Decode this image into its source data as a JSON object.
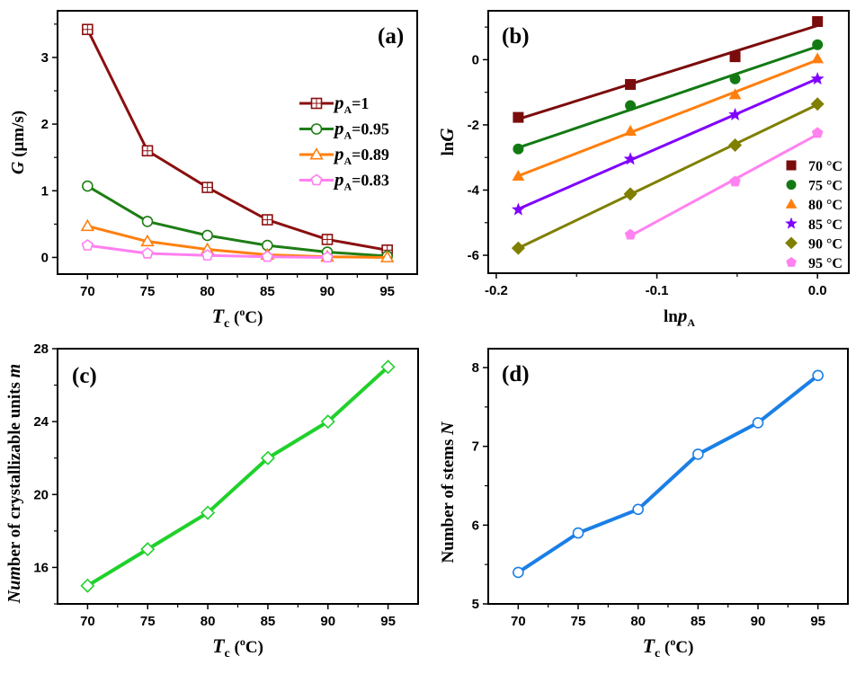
{
  "chart_data": [
    {
      "panel": "(a)",
      "type": "line",
      "title": "",
      "xlabel": "Tc (oC)",
      "xlabel_main": "T",
      "xlabel_sub": "c",
      "xlabel_unit_open": " (",
      "xlabel_unit_sup": "o",
      "xlabel_unit_close": "C)",
      "ylabel": "G (μm/s)",
      "ylabel_main": "G",
      "ylabel_unit": " (μm/s)",
      "x": [
        70,
        75,
        80,
        85,
        90,
        95
      ],
      "xlim": [
        67.5,
        97.5
      ],
      "ylim": [
        -0.25,
        3.7
      ],
      "xticks": [
        70,
        75,
        80,
        85,
        90,
        95
      ],
      "yticks": [
        0,
        1,
        2,
        3
      ],
      "legend_position": "center-right",
      "series": [
        {
          "name": "pA=1",
          "label_main": "p",
          "label_sub": "A",
          "label_rest": "=1",
          "color": "#8b0f0f",
          "marker": "square-open",
          "values": [
            3.42,
            1.6,
            1.05,
            0.565,
            0.27,
            0.11
          ]
        },
        {
          "name": "pA=0.95",
          "label_main": "p",
          "label_sub": "A",
          "label_rest": "=0.95",
          "color": "#1e7d14",
          "marker": "circle-open",
          "values": [
            1.07,
            0.54,
            0.33,
            0.18,
            0.08,
            0.02
          ]
        },
        {
          "name": "pA=0.89",
          "label_main": "p",
          "label_sub": "A",
          "label_rest": "=0.89",
          "color": "#ff7f0e",
          "marker": "triangle-open",
          "values": [
            0.47,
            0.24,
            0.12,
            0.04,
            0.01,
            0.0
          ]
        },
        {
          "name": "pA=0.83",
          "label_main": "p",
          "label_sub": "A",
          "label_rest": "=0.83",
          "color": "#ff7ff0",
          "marker": "pentagon-open",
          "values": [
            0.18,
            0.06,
            0.03,
            0.01,
            0.0,
            null
          ]
        }
      ]
    },
    {
      "panel": "(b)",
      "type": "scatter",
      "title": "",
      "xlabel": "lnpA",
      "xlabel_main": "ln",
      "xlabel_italic": "p",
      "xlabel_sub": "A",
      "ylabel": "lnG",
      "ylabel_main": "ln",
      "ylabel_italic": "G",
      "x": [
        -0.1863,
        -0.1165,
        -0.0513,
        0.0
      ],
      "xlim": [
        -0.205,
        0.0195
      ],
      "ylim": [
        -6.55,
        1.5
      ],
      "xticks": [
        -0.2,
        -0.1,
        0.0
      ],
      "xtick_labels": [
        "-0.2",
        "-0.1",
        "0.0"
      ],
      "yticks": [
        -6,
        -4,
        -2,
        0
      ],
      "legend_position": "bottom-right",
      "fit_lines": true,
      "series": [
        {
          "name": "70 °C",
          "color": "#7b0c0c",
          "marker": "square",
          "values": [
            -1.77,
            -0.76,
            0.09,
            1.17
          ]
        },
        {
          "name": "75 °C",
          "color": "#137a13",
          "marker": "circle",
          "values": [
            -2.74,
            -1.41,
            -0.59,
            0.46
          ]
        },
        {
          "name": "80 °C",
          "color": "#ff7f0e",
          "marker": "triangle",
          "values": [
            -3.57,
            -2.19,
            -1.07,
            0.03
          ]
        },
        {
          "name": "85 °C",
          "color": "#7f00ff",
          "marker": "star",
          "values": [
            -4.6,
            -3.05,
            -1.69,
            -0.59
          ]
        },
        {
          "name": "90 °C",
          "color": "#7f7f00",
          "marker": "diamond",
          "values": [
            -5.78,
            -4.12,
            -2.62,
            -1.36
          ]
        },
        {
          "name": "95 °C",
          "color": "#ff82f0",
          "marker": "pentagon",
          "values": [
            null,
            -5.37,
            -3.74,
            -2.25
          ]
        }
      ]
    },
    {
      "panel": "(c)",
      "type": "line",
      "title": "",
      "xlabel": "Tc (oC)",
      "xlabel_main": "T",
      "xlabel_sub": "c",
      "xlabel_unit_open": " (",
      "xlabel_unit_sup": "o",
      "xlabel_unit_close": "C)",
      "ylabel": "Number of crystallizable units m",
      "ylabel_italic_pre": "Num",
      "ylabel_main": "ber of crystallizable units ",
      "ylabel_italic": "m",
      "x": [
        70,
        75,
        80,
        85,
        90,
        95
      ],
      "xlim": [
        67.5,
        97.5
      ],
      "ylim": [
        14.0,
        28.0
      ],
      "xticks": [
        70,
        75,
        80,
        85,
        90,
        95
      ],
      "yticks": [
        16,
        20,
        24,
        28
      ],
      "series": [
        {
          "name": "m",
          "color": "#1fd12b",
          "marker": "diamond-open",
          "values": [
            15,
            17,
            19,
            22,
            24,
            27
          ]
        }
      ]
    },
    {
      "panel": "(d)",
      "type": "line",
      "title": "",
      "xlabel": "Tc (oC)",
      "xlabel_main": "T",
      "xlabel_sub": "c",
      "xlabel_unit_open": " (",
      "xlabel_unit_sup": "o",
      "xlabel_unit_close": "C)",
      "ylabel": "Number of stems N",
      "ylabel_main": "Number of stems ",
      "ylabel_italic": "N",
      "x": [
        70,
        75,
        80,
        85,
        90,
        95
      ],
      "xlim": [
        67.5,
        97.5
      ],
      "ylim": [
        5.0,
        8.24
      ],
      "xticks": [
        70,
        75,
        80,
        85,
        90,
        95
      ],
      "yticks": [
        5,
        6,
        7,
        8
      ],
      "series": [
        {
          "name": "N",
          "color": "#1a7fe6",
          "marker": "circle-open",
          "values": [
            5.4,
            5.9,
            6.2,
            6.9,
            7.3,
            7.9
          ]
        }
      ]
    }
  ]
}
